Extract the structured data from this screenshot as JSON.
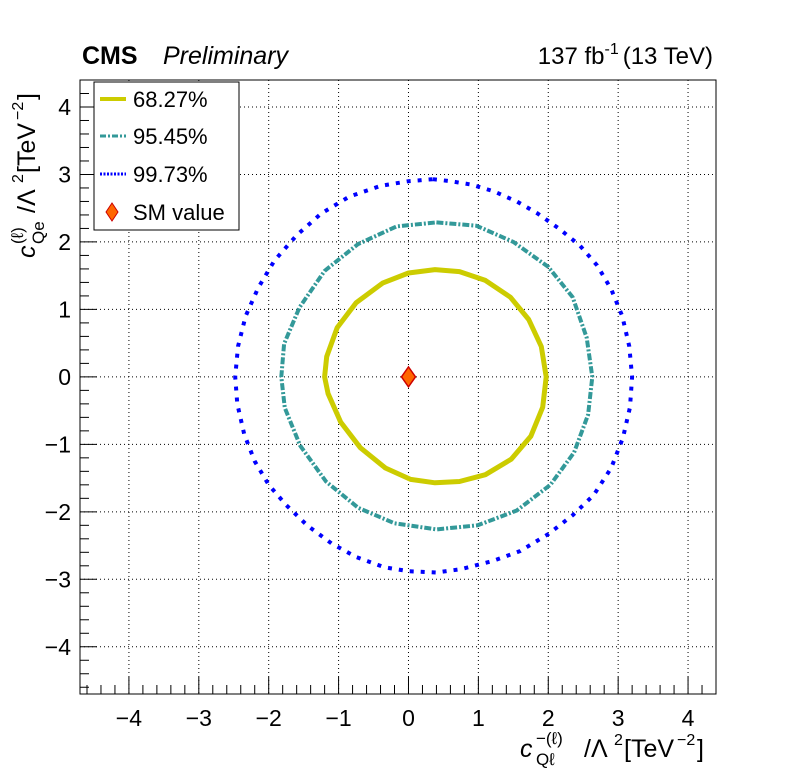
{
  "header": {
    "experiment": "CMS",
    "status": "Preliminary",
    "lumi_value": "137 fb",
    "lumi_exp": "-1",
    "energy": "(13 TeV)"
  },
  "chart_data": {
    "type": "contour",
    "xlabel": "c_{Qℓ}^{−(ℓ)}/Λ²[TeV⁻²]",
    "ylabel": "c_{Qe}^{(ℓ)}/Λ²[TeV⁻²]",
    "xlim": [
      -4.7,
      4.4
    ],
    "ylim": [
      -4.7,
      4.4
    ],
    "x_ticks": [
      -4,
      -3,
      -2,
      -1,
      0,
      1,
      2,
      3,
      4
    ],
    "y_ticks": [
      -4,
      -3,
      -2,
      -1,
      0,
      1,
      2,
      3,
      4
    ],
    "x_tick_labels": [
      "−4",
      "−3",
      "−2",
      "−1",
      "0",
      "1",
      "2",
      "3",
      "4"
    ],
    "y_tick_labels": [
      "−4",
      "−3",
      "−2",
      "−1",
      "0",
      "1",
      "2",
      "3",
      "4"
    ],
    "grid": true,
    "legend_position": "top-left",
    "series": [
      {
        "name": "68.27%",
        "color": "#cccc00",
        "style": "solid",
        "points": [
          [
            0.38,
            1.59
          ],
          [
            0.73,
            1.56
          ],
          [
            1.1,
            1.43
          ],
          [
            1.46,
            1.18
          ],
          [
            1.72,
            0.85
          ],
          [
            1.9,
            0.45
          ],
          [
            1.97,
            0.0
          ],
          [
            1.92,
            -0.45
          ],
          [
            1.75,
            -0.88
          ],
          [
            1.47,
            -1.22
          ],
          [
            1.1,
            -1.45
          ],
          [
            0.73,
            -1.55
          ],
          [
            0.38,
            -1.57
          ],
          [
            0.03,
            -1.52
          ],
          [
            -0.33,
            -1.35
          ],
          [
            -0.69,
            -1.05
          ],
          [
            -0.97,
            -0.67
          ],
          [
            -1.15,
            -0.25
          ],
          [
            -1.2,
            0.0
          ],
          [
            -1.17,
            0.3
          ],
          [
            -1.02,
            0.73
          ],
          [
            -0.75,
            1.1
          ],
          [
            -0.37,
            1.39
          ],
          [
            0.0,
            1.54
          ]
        ]
      },
      {
        "name": "95.45%",
        "color": "#339999",
        "style": "dash-dot",
        "points": [
          [
            0.4,
            2.29
          ],
          [
            0.97,
            2.24
          ],
          [
            1.5,
            2.0
          ],
          [
            2.0,
            1.63
          ],
          [
            2.35,
            1.18
          ],
          [
            2.55,
            0.58
          ],
          [
            2.63,
            0.0
          ],
          [
            2.57,
            -0.56
          ],
          [
            2.37,
            -1.12
          ],
          [
            2.03,
            -1.6
          ],
          [
            1.55,
            -1.98
          ],
          [
            0.99,
            -2.2
          ],
          [
            0.4,
            -2.26
          ],
          [
            -0.2,
            -2.17
          ],
          [
            -0.72,
            -1.94
          ],
          [
            -1.18,
            -1.55
          ],
          [
            -1.55,
            -1.02
          ],
          [
            -1.77,
            -0.46
          ],
          [
            -1.82,
            0.0
          ],
          [
            -1.78,
            0.49
          ],
          [
            -1.56,
            1.03
          ],
          [
            -1.2,
            1.57
          ],
          [
            -0.72,
            1.97
          ],
          [
            -0.17,
            2.23
          ]
        ]
      },
      {
        "name": "99.73%",
        "color": "#0000ff",
        "style": "dotted",
        "points": [
          [
            0.35,
            2.93
          ],
          [
            0.6,
            2.9
          ],
          [
            0.9,
            2.85
          ],
          [
            1.22,
            2.75
          ],
          [
            1.55,
            2.6
          ],
          [
            1.85,
            2.42
          ],
          [
            2.15,
            2.2
          ],
          [
            2.45,
            1.95
          ],
          [
            2.7,
            1.65
          ],
          [
            2.9,
            1.3
          ],
          [
            3.06,
            0.9
          ],
          [
            3.16,
            0.45
          ],
          [
            3.2,
            0.0
          ],
          [
            3.17,
            -0.45
          ],
          [
            3.07,
            -0.9
          ],
          [
            2.9,
            -1.35
          ],
          [
            2.65,
            -1.75
          ],
          [
            2.35,
            -2.05
          ],
          [
            2.0,
            -2.33
          ],
          [
            1.6,
            -2.58
          ],
          [
            1.2,
            -2.73
          ],
          [
            0.75,
            -2.85
          ],
          [
            0.4,
            -2.9
          ],
          [
            0.0,
            -2.88
          ],
          [
            -0.35,
            -2.82
          ],
          [
            -0.75,
            -2.67
          ],
          [
            -1.1,
            -2.47
          ],
          [
            -1.45,
            -2.2
          ],
          [
            -1.75,
            -1.9
          ],
          [
            -2.0,
            -1.6
          ],
          [
            -2.2,
            -1.25
          ],
          [
            -2.35,
            -0.85
          ],
          [
            -2.45,
            -0.4
          ],
          [
            -2.48,
            0.0
          ],
          [
            -2.44,
            0.45
          ],
          [
            -2.33,
            0.9
          ],
          [
            -2.15,
            1.32
          ],
          [
            -1.92,
            1.72
          ],
          [
            -1.6,
            2.1
          ],
          [
            -1.25,
            2.42
          ],
          [
            -0.85,
            2.67
          ],
          [
            -0.4,
            2.83
          ],
          [
            0.0,
            2.9
          ]
        ]
      }
    ],
    "sm_point": {
      "name": "SM value",
      "x": 0,
      "y": 0,
      "fill": "#ff6600",
      "stroke": "#cc0000"
    }
  }
}
